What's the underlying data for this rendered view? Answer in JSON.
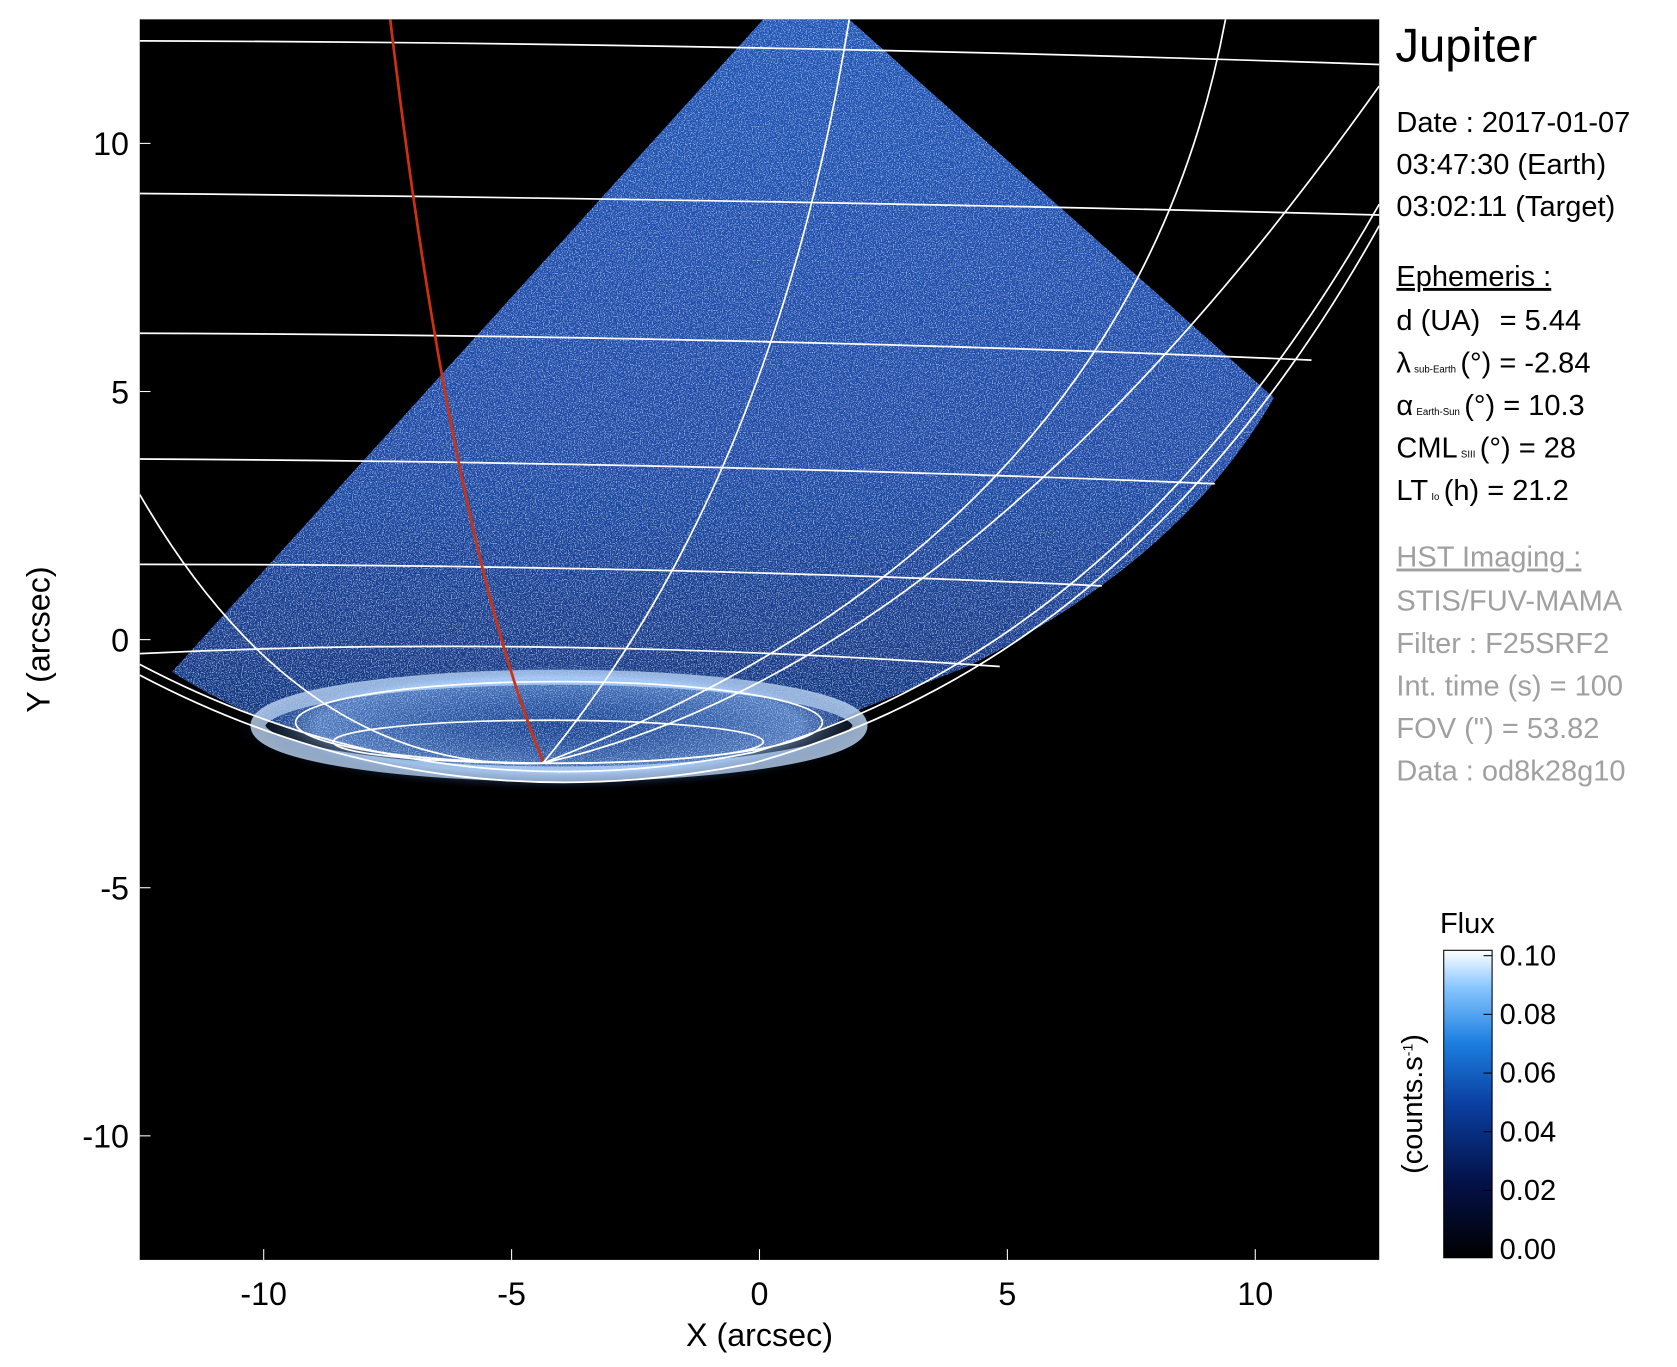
{
  "chart_data": {
    "type": "image",
    "title": "Jupiter",
    "x_label": "X (arcsec)",
    "y_label": "Y (arcsec)",
    "xlim": [
      -12.5,
      12.5
    ],
    "ylim": [
      -12.5,
      12.5
    ],
    "xticks": [
      -10,
      -5,
      0,
      5,
      10
    ],
    "yticks": [
      -10,
      -5,
      0,
      5,
      10
    ],
    "colorbar": {
      "title": "Flux",
      "unit": [
        "(counts.s",
        "-1",
        ")"
      ],
      "lim": [
        0,
        0.1
      ],
      "ticks": [
        {
          "value": 0,
          "label": "0.00"
        },
        {
          "value": 0.02,
          "label": "0.02"
        },
        {
          "value": 0.04,
          "label": "0.04"
        },
        {
          "value": 0.06,
          "label": "0.06"
        },
        {
          "value": 0.08,
          "label": "0.08"
        },
        {
          "value": 0.1,
          "label": "0.10"
        }
      ]
    },
    "info": {
      "date": [
        "Date : 2017-01-07",
        "03:47:30 (Earth)",
        "03:02:11 (Target)"
      ],
      "ephemeris_title": "Ephemeris :",
      "ephemeris": [
        {
          "symbol": "d (UA)",
          "text": "= 5.44"
        },
        {
          "symbol": "λ",
          "sub": "sub-Earth",
          "text": "(°) = -2.84"
        },
        {
          "symbol": "α",
          "sub": "Earth-Sun",
          "text": "(°) = 10.3"
        },
        {
          "symbol": "CML",
          "sub": "SIII",
          "text": "(°) = 28"
        },
        {
          "symbol": "LT",
          "sub": "Io",
          "text": "(h) = 21.2"
        }
      ],
      "instrument_title": "HST Imaging :",
      "instrument": [
        "STIS/FUV-MAMA",
        "Filter : F25SRF2",
        "Int. time (s) = 100",
        "FOV (\") = 53.82",
        "Data : od8k28g10"
      ]
    }
  }
}
